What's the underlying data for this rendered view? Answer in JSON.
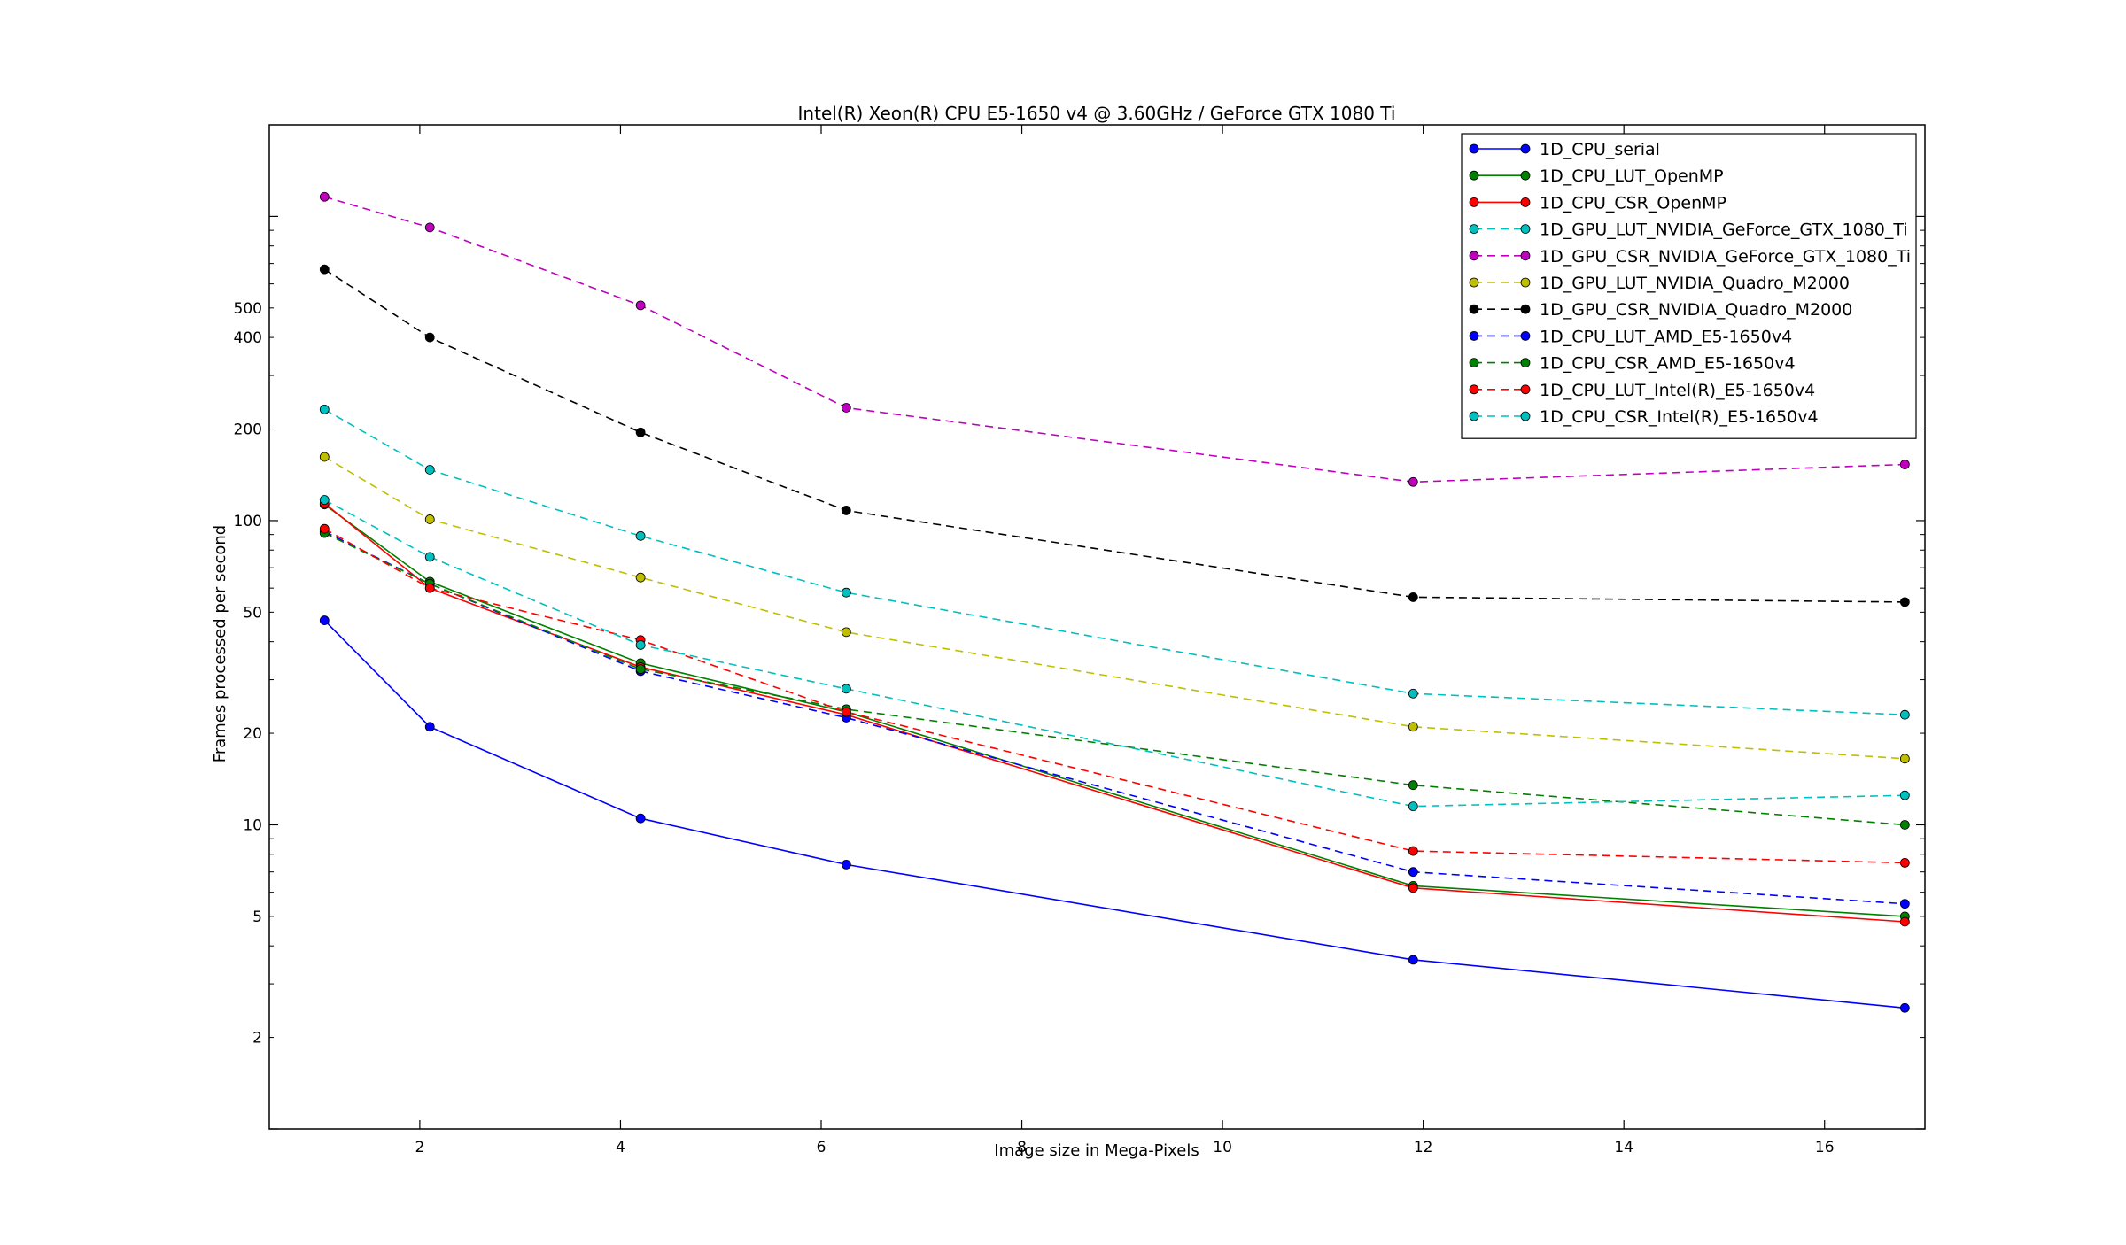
{
  "chart_data": {
    "type": "line",
    "title": "Intel(R) Xeon(R) CPU E5-1650 v4 @ 3.60GHz / GeForce GTX 1080 Ti",
    "xlabel": "Image size in Mega-Pixels",
    "ylabel": "Frames processed per second",
    "xlim": [
      0.5,
      17.0
    ],
    "ylim": [
      1.0,
      2000
    ],
    "yscale": "log",
    "xticks": [
      2,
      4,
      6,
      8,
      10,
      12,
      14,
      16
    ],
    "xtick_labels": [
      "2",
      "4",
      "6",
      "8",
      "10",
      "12",
      "14",
      "16"
    ],
    "yticks": [
      2,
      5,
      10,
      20,
      50,
      100,
      200,
      400,
      500
    ],
    "ytick_labels": [
      "2",
      "5",
      "10",
      "20",
      "50",
      "100",
      "200",
      "400",
      "500"
    ],
    "legend_position": "top-right",
    "grid": false,
    "x": [
      1.05,
      2.1,
      4.2,
      6.25,
      11.9,
      16.8
    ],
    "series": [
      {
        "name": "1D_CPU_serial",
        "color": "#0000ff",
        "dashed": false,
        "values": [
          47,
          21,
          10.5,
          7.4,
          3.6,
          2.5
        ]
      },
      {
        "name": "1D_CPU_LUT_OpenMP",
        "color": "#008000",
        "dashed": false,
        "values": [
          113,
          63,
          34,
          23.5,
          6.3,
          5.0
        ]
      },
      {
        "name": "1D_CPU_CSR_OpenMP",
        "color": "#ff0000",
        "dashed": false,
        "values": [
          114,
          60,
          33,
          23,
          6.2,
          4.8
        ]
      },
      {
        "name": "1D_GPU_LUT_NVIDIA_GeForce_GTX_1080_Ti",
        "color": "#00bfbf",
        "dashed": true,
        "values": [
          232,
          147,
          89,
          58,
          27,
          23
        ]
      },
      {
        "name": "1D_GPU_CSR_NVIDIA_GeForce_GTX_1080_Ti",
        "color": "#bf00bf",
        "dashed": true,
        "values": [
          1160,
          920,
          510,
          235,
          134,
          153
        ]
      },
      {
        "name": "1D_GPU_LUT_NVIDIA_Quadro_M2000",
        "color": "#bfbf00",
        "dashed": true,
        "values": [
          162,
          101,
          65,
          43,
          21,
          16.5
        ]
      },
      {
        "name": "1D_GPU_CSR_NVIDIA_Quadro_M2000",
        "color": "#000000",
        "dashed": true,
        "values": [
          670,
          400,
          195,
          108,
          56,
          54
        ]
      },
      {
        "name": "1D_CPU_LUT_AMD_E5-1650v4",
        "color": "#0000ff",
        "dashed": true,
        "values": [
          92,
          62,
          32,
          22.5,
          7.0,
          5.5
        ]
      },
      {
        "name": "1D_CPU_CSR_AMD_E5-1650v4",
        "color": "#008000",
        "dashed": true,
        "values": [
          91,
          62,
          32.5,
          24,
          13.5,
          10
        ]
      },
      {
        "name": "1D_CPU_LUT_Intel(R)_E5-1650v4",
        "color": "#ff0000",
        "dashed": true,
        "values": [
          94,
          60,
          40.5,
          23.5,
          8.2,
          7.5
        ]
      },
      {
        "name": "1D_CPU_CSR_Intel(R)_E5-1650v4",
        "color": "#00bfbf",
        "dashed": true,
        "values": [
          117,
          76,
          39,
          28,
          11.5,
          12.5
        ]
      }
    ]
  }
}
